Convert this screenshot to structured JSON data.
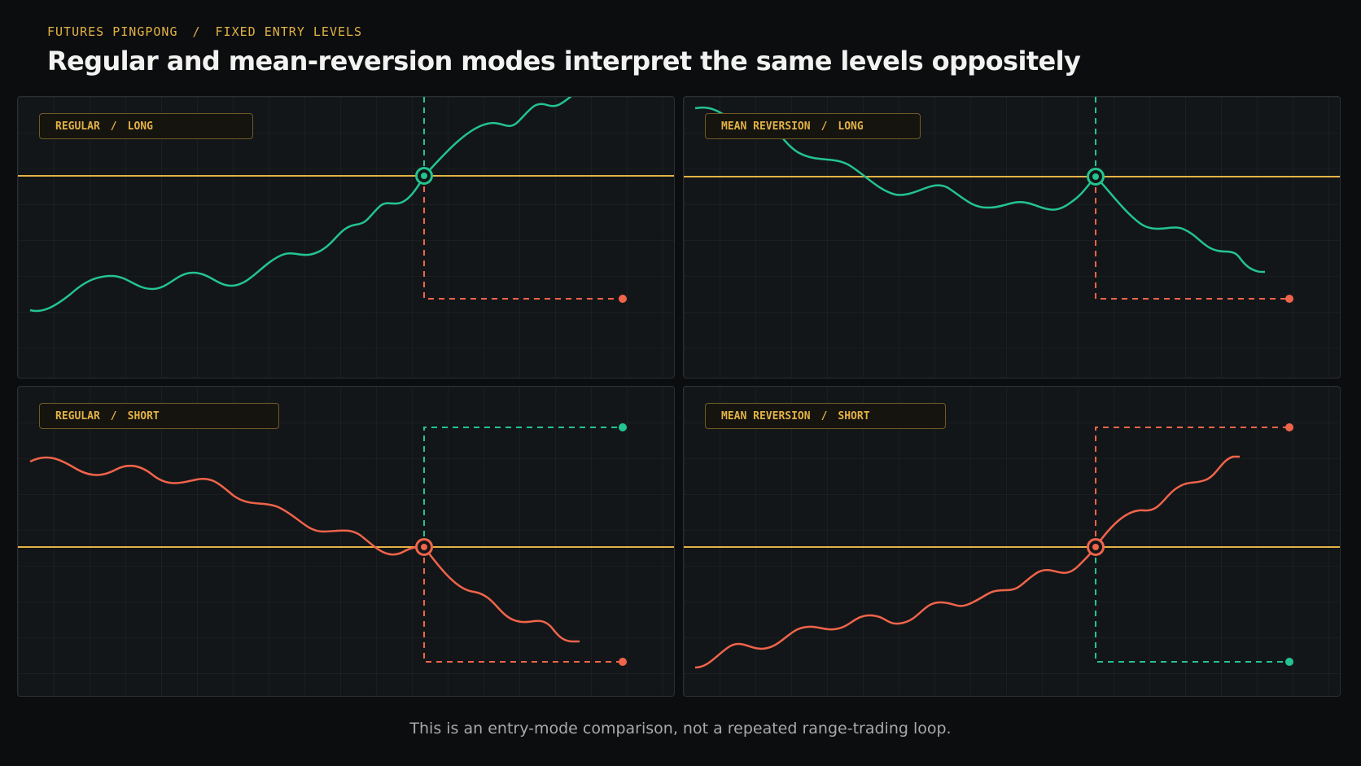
{
  "header": {
    "eyebrow_left": "FUTURES PINGPONG",
    "eyebrow_sep": "/",
    "eyebrow_right": "FIXED ENTRY LEVELS",
    "title": "Regular and mean-reversion modes interpret the same levels oppositely"
  },
  "panels": [
    {
      "mode": "REGULAR",
      "sep": "/",
      "side": "LONG",
      "line_color": "#23c48f",
      "entry_color": "#23c48f",
      "target_color": "#f0644b",
      "target_direction": "below"
    },
    {
      "mode": "MEAN REVERSION",
      "sep": "/",
      "side": "LONG",
      "line_color": "#23c48f",
      "entry_color": "#23c48f",
      "target_color": "#f0644b",
      "target_direction": "below"
    },
    {
      "mode": "REGULAR",
      "sep": "/",
      "side": "SHORT",
      "line_color": "#f0644b",
      "entry_color": "#f0644b",
      "target_color": "#23c48f",
      "target_direction": "above"
    },
    {
      "mode": "MEAN REVERSION",
      "sep": "/",
      "side": "SHORT",
      "line_color": "#f0644b",
      "entry_color": "#f0644b",
      "target_color": "#f0644b",
      "alt_target_color": "#23c48f",
      "target_direction": "both"
    }
  ],
  "colors": {
    "level_line": "#e3b245",
    "long": "#23c48f",
    "short": "#f0644b",
    "accent": "#e3b245"
  },
  "footer": {
    "note": "This is an entry-mode comparison, not a repeated range-trading loop."
  }
}
